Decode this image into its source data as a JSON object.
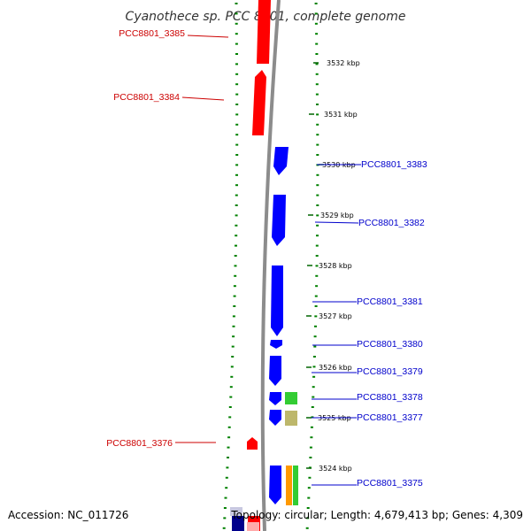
{
  "title": "Cyanothece sp. PCC 8801, complete genome",
  "footer": {
    "accession": "Accession: NC_011726",
    "summary": "Topology: circular; Length: 4,679,413 bp; Genes: 4,309"
  },
  "kbp_labels": [
    "3532 kbp",
    "3531 kbp",
    "3530 kbp",
    "3529 kbp",
    "3528 kbp",
    "3527 kbp",
    "3526 kbp",
    "3525 kbp",
    "3524 kbp"
  ],
  "genes_left": [
    "PCC8801_3385",
    "PCC8801_3384",
    "PCC8801_3376"
  ],
  "genes_right": [
    "PCC8801_3383",
    "PCC8801_3382",
    "PCC8801_3381",
    "PCC8801_3380",
    "PCC8801_3379",
    "PCC8801_3378",
    "PCC8801_3377",
    "PCC8801_3375"
  ],
  "colors": {
    "reverse_strand": "#ff0000",
    "forward_strand": "#0000ff",
    "backbone": "#808080",
    "tick": "#008000",
    "label_left": "#cc0000",
    "label_right": "#0000cc",
    "feature_green": "#33cc33",
    "feature_khaki": "#bdb76b",
    "feature_orange": "#ff9900"
  }
}
